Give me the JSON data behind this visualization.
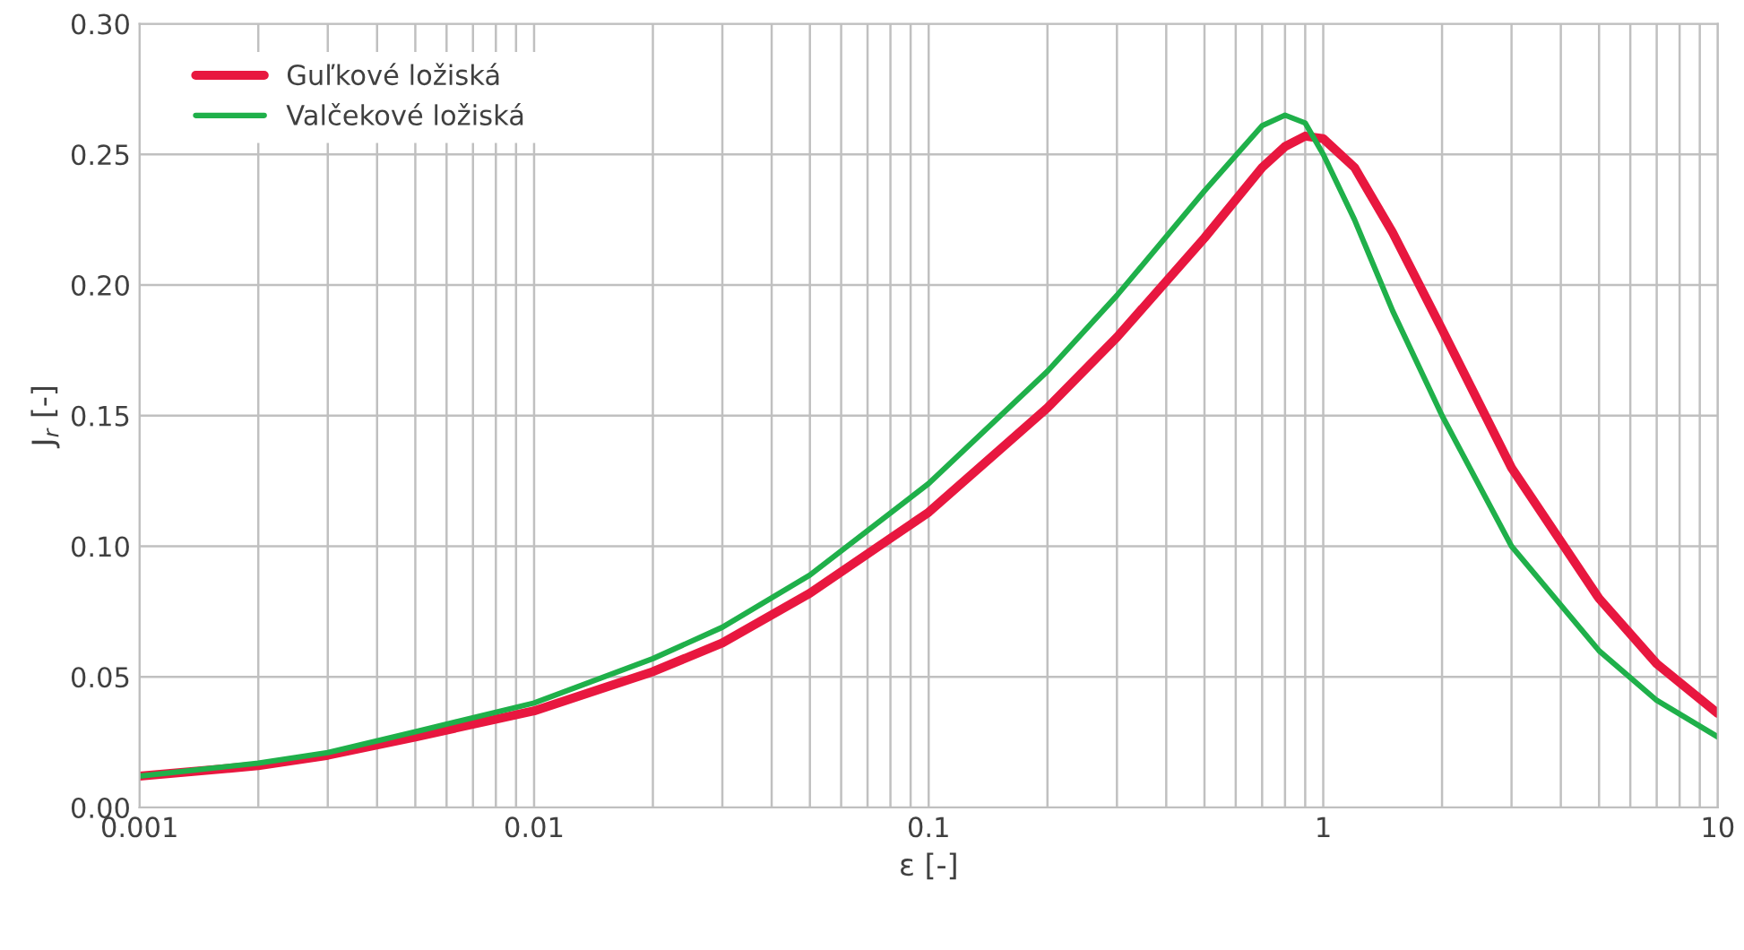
{
  "chart_data": {
    "type": "line",
    "xlabel": "ε [-]",
    "ylabel": "J$_{r}$ [-]",
    "log": "x",
    "grid": true,
    "legend": "top left",
    "marker": "none",
    "line_style": "solid",
    "xlim": [
      0.001,
      10
    ],
    "ylim": [
      0,
      0.3
    ],
    "xticks": [
      {
        "value": 0.001,
        "label": "0.001"
      },
      {
        "value": 0.01,
        "label": "0.01"
      },
      {
        "value": 0.1,
        "label": "0.1"
      },
      {
        "value": 1,
        "label": "1"
      },
      {
        "value": 10,
        "label": "10"
      }
    ],
    "yticks": [
      {
        "value": 0,
        "label": "0.00"
      },
      {
        "value": 0.05,
        "label": "0.05"
      },
      {
        "value": 0.1,
        "label": "0.10"
      },
      {
        "value": 0.15,
        "label": "0.15"
      },
      {
        "value": 0.2,
        "label": "0.20"
      },
      {
        "value": 0.25,
        "label": "0.25"
      },
      {
        "value": 0.3,
        "label": "0.30"
      }
    ],
    "series": [
      {
        "name": "Guľkové ložiská",
        "color": "#e8173f",
        "x": [
          0.001,
          0.002,
          0.003,
          0.005,
          0.01,
          0.02,
          0.03,
          0.05,
          0.1,
          0.2,
          0.3,
          0.5,
          0.7,
          0.8,
          0.9,
          1.0,
          1.2,
          1.5,
          2,
          3,
          5,
          7,
          10
        ],
        "values": [
          0.012,
          0.016,
          0.02,
          0.027,
          0.037,
          0.052,
          0.063,
          0.082,
          0.113,
          0.153,
          0.18,
          0.218,
          0.245,
          0.253,
          0.257,
          0.256,
          0.245,
          0.22,
          0.183,
          0.13,
          0.08,
          0.055,
          0.036
        ]
      },
      {
        "name": "Valčekové ložiská",
        "color": "#1fb04a",
        "x": [
          0.001,
          0.002,
          0.003,
          0.005,
          0.01,
          0.02,
          0.03,
          0.05,
          0.1,
          0.2,
          0.3,
          0.5,
          0.7,
          0.8,
          0.9,
          1.0,
          1.2,
          1.5,
          2,
          3,
          5,
          7,
          10
        ],
        "values": [
          0.012,
          0.017,
          0.021,
          0.029,
          0.04,
          0.057,
          0.069,
          0.089,
          0.124,
          0.167,
          0.196,
          0.236,
          0.261,
          0.265,
          0.262,
          0.25,
          0.225,
          0.19,
          0.15,
          0.1,
          0.06,
          0.041,
          0.027
        ]
      }
    ]
  }
}
